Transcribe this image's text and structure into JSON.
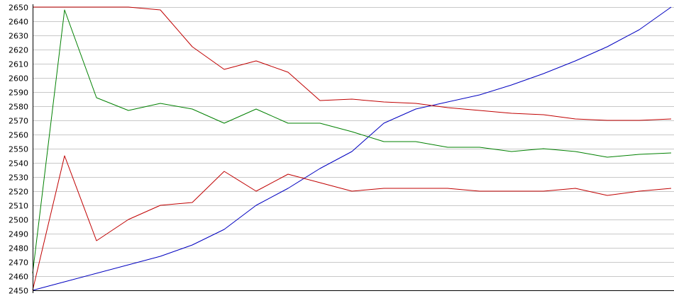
{
  "chart_data": {
    "type": "line",
    "title": "",
    "xlabel": "",
    "ylabel": "",
    "ylim": [
      2450,
      2650
    ],
    "yticks": [
      2450,
      2460,
      2470,
      2480,
      2490,
      2500,
      2510,
      2520,
      2530,
      2540,
      2550,
      2560,
      2570,
      2580,
      2590,
      2600,
      2610,
      2620,
      2630,
      2640,
      2650
    ],
    "ytick_labels": [
      "2450",
      "2460",
      "2470",
      "2480",
      "2490",
      "2500",
      "2510",
      "2520",
      "2530",
      "2540",
      "2550",
      "2560",
      "2570",
      "2580",
      "2590",
      "2600",
      "2610",
      "2620",
      "2630",
      "2640",
      "2650"
    ],
    "grid": true,
    "legend": "none",
    "x": [
      0,
      5,
      10,
      15,
      20,
      25,
      30,
      35,
      40,
      45,
      50,
      55,
      60,
      65,
      70,
      75,
      80,
      85,
      90,
      95,
      100
    ],
    "series": [
      {
        "color": "#0000c0",
        "values": [
          2450,
          2456,
          2462,
          2468,
          2474,
          2482,
          2493,
          2510,
          2522,
          2536,
          2548,
          2568,
          2578,
          2583,
          2588,
          2595,
          2603,
          2612,
          2622,
          2634,
          2650
        ]
      },
      {
        "color": "#008000",
        "values": [
          2462,
          2648,
          2586,
          2577,
          2582,
          2578,
          2568,
          2578,
          2568,
          2568,
          2562,
          2555,
          2555,
          2551,
          2551,
          2548,
          2550,
          2548,
          2544,
          2546,
          2547
        ]
      },
      {
        "color": "#c00000",
        "values": [
          2650,
          2650,
          2650,
          2650,
          2648,
          2622,
          2606,
          2612,
          2604,
          2584,
          2585,
          2583,
          2582,
          2579,
          2577,
          2575,
          2574,
          2571,
          2570,
          2570,
          2571
        ]
      },
      {
        "color": "#c00000",
        "values": [
          2450,
          2545,
          2485,
          2500,
          2510,
          2512,
          2534,
          2520,
          2532,
          2526,
          2520,
          2522,
          2522,
          2522,
          2520,
          2520,
          2520,
          2522,
          2517,
          2520,
          2522
        ]
      }
    ]
  }
}
